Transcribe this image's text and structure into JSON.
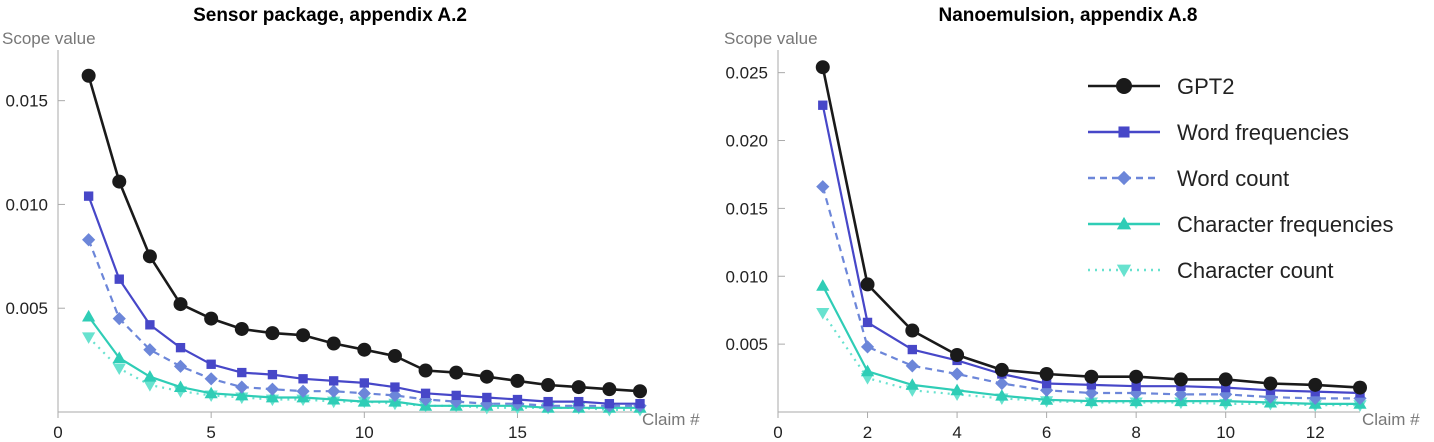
{
  "chart_data": [
    {
      "type": "line",
      "title": "Sensor package, appendix A.2",
      "ylabel": "Scope value",
      "xlabel": "Claim #",
      "xlim": [
        0,
        19
      ],
      "ylim": [
        0,
        0.0172
      ],
      "xticks": [
        0,
        5,
        10,
        15
      ],
      "yticks": [
        0.005,
        0.01,
        0.015
      ],
      "ytick_labels": [
        "0.005",
        "0.010",
        "0.015"
      ],
      "x": [
        1,
        2,
        3,
        4,
        5,
        6,
        7,
        8,
        9,
        10,
        11,
        12,
        13,
        14,
        15,
        16,
        17,
        18,
        19
      ],
      "series": [
        {
          "name": "GPT2",
          "values": [
            0.0162,
            0.0111,
            0.0075,
            0.0052,
            0.0045,
            0.004,
            0.0038,
            0.0037,
            0.0033,
            0.003,
            0.0027,
            0.002,
            0.0019,
            0.0017,
            0.0015,
            0.0013,
            0.0012,
            0.0011,
            0.001
          ]
        },
        {
          "name": "Word frequencies",
          "values": [
            0.0104,
            0.0064,
            0.0042,
            0.0031,
            0.0023,
            0.0019,
            0.0018,
            0.0016,
            0.0015,
            0.0014,
            0.0012,
            0.0009,
            0.0008,
            0.0007,
            0.0006,
            0.0005,
            0.0005,
            0.0004,
            0.0004
          ]
        },
        {
          "name": "Word count",
          "values": [
            0.0083,
            0.0045,
            0.003,
            0.0022,
            0.0016,
            0.0012,
            0.0011,
            0.001,
            0.001,
            0.0009,
            0.0008,
            0.0006,
            0.0005,
            0.0004,
            0.0004,
            0.0003,
            0.0003,
            0.0003,
            0.0003
          ]
        },
        {
          "name": "Character frequencies",
          "values": [
            0.0046,
            0.0026,
            0.0017,
            0.0012,
            0.0009,
            0.0008,
            0.0007,
            0.0007,
            0.0006,
            0.0005,
            0.0005,
            0.0003,
            0.0003,
            0.0003,
            0.0003,
            0.0002,
            0.0002,
            0.0002,
            0.0002
          ]
        },
        {
          "name": "Character count",
          "values": [
            0.0036,
            0.0021,
            0.0013,
            0.001,
            0.0008,
            0.0007,
            0.0006,
            0.0006,
            0.0005,
            0.0005,
            0.0004,
            0.0003,
            0.0003,
            0.0002,
            0.0002,
            0.0002,
            0.0002,
            0.0001,
            0.0001
          ]
        }
      ]
    },
    {
      "type": "line",
      "title": "Nanoemulsion, appendix A.8",
      "ylabel": "Scope value",
      "xlabel": "Claim #",
      "xlim": [
        0,
        13
      ],
      "ylim": [
        0,
        0.0263
      ],
      "xticks": [
        0,
        2,
        4,
        6,
        8,
        10,
        12
      ],
      "yticks": [
        0.005,
        0.01,
        0.015,
        0.02,
        0.025
      ],
      "ytick_labels": [
        "0.005",
        "0.010",
        "0.015",
        "0.020",
        "0.025"
      ],
      "x": [
        1,
        2,
        3,
        4,
        5,
        6,
        7,
        8,
        9,
        10,
        11,
        12,
        13
      ],
      "series": [
        {
          "name": "GPT2",
          "values": [
            0.0254,
            0.0094,
            0.006,
            0.0042,
            0.0031,
            0.0028,
            0.0026,
            0.0026,
            0.0024,
            0.0024,
            0.0021,
            0.002,
            0.0018
          ]
        },
        {
          "name": "Word frequencies",
          "values": [
            0.0226,
            0.0066,
            0.0046,
            0.0038,
            0.0028,
            0.0021,
            0.002,
            0.0019,
            0.0019,
            0.0018,
            0.0016,
            0.0015,
            0.0014
          ]
        },
        {
          "name": "Word count",
          "values": [
            0.0166,
            0.0048,
            0.0034,
            0.0028,
            0.0021,
            0.0016,
            0.0014,
            0.0014,
            0.0013,
            0.0013,
            0.0011,
            0.001,
            0.001
          ]
        },
        {
          "name": "Character frequencies",
          "values": [
            0.0093,
            0.003,
            0.002,
            0.0016,
            0.0012,
            0.0009,
            0.0008,
            0.0008,
            0.0008,
            0.0008,
            0.0007,
            0.0006,
            0.0006
          ]
        },
        {
          "name": "Character count",
          "values": [
            0.0073,
            0.0025,
            0.0016,
            0.0013,
            0.001,
            0.0008,
            0.0007,
            0.0007,
            0.0007,
            0.0006,
            0.0006,
            0.0005,
            0.0005
          ]
        }
      ]
    }
  ],
  "legend": {
    "placement": "top-right",
    "items": [
      {
        "name": "GPT2",
        "color": "#1a1a1a",
        "marker": "circle",
        "dash": "solid"
      },
      {
        "name": "Word frequencies",
        "color": "#4747c8",
        "marker": "square",
        "dash": "solid"
      },
      {
        "name": "Word count",
        "color": "#6c86d9",
        "marker": "diamond",
        "dash": "dashed"
      },
      {
        "name": "Character frequencies",
        "color": "#2fcdb6",
        "marker": "triangle-up",
        "dash": "solid"
      },
      {
        "name": "Character count",
        "color": "#68e2cf",
        "marker": "triangle-down",
        "dash": "dotted"
      }
    ]
  }
}
